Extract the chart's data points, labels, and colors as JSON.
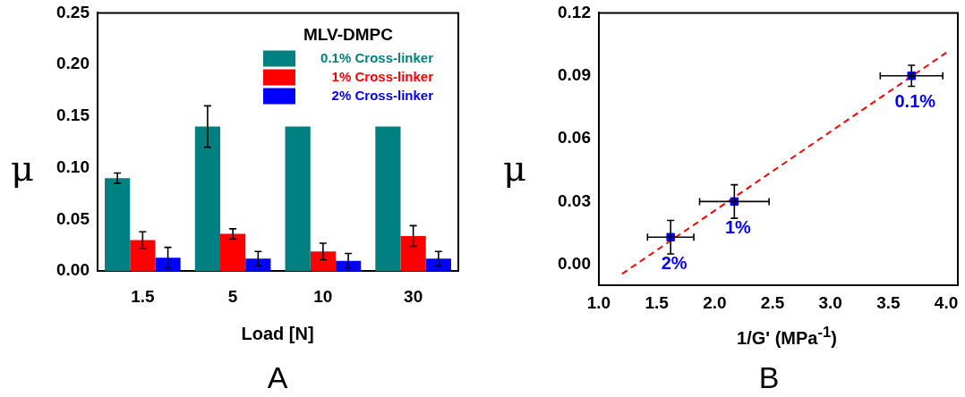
{
  "chart_data": [
    {
      "type": "bar",
      "xlabel": "Load [N]",
      "ylabel": "μ",
      "categories": [
        "1.5",
        "5",
        "10",
        "30"
      ],
      "series": [
        {
          "name": "0.1% Cross-linker",
          "color": "#008080",
          "values": [
            0.09,
            0.14,
            0.14,
            0.14
          ],
          "errors": [
            0.005,
            0.02,
            null,
            null
          ]
        },
        {
          "name": "1% Cross-linker",
          "color": "#ff0000",
          "values": [
            0.03,
            0.036,
            0.019,
            0.034
          ],
          "errors": [
            0.008,
            0.005,
            0.008,
            0.01
          ]
        },
        {
          "name": "2% Cross-linker",
          "color": "#0000ff",
          "values": [
            0.013,
            0.012,
            0.01,
            0.012
          ],
          "errors": [
            0.01,
            0.007,
            0.007,
            0.007
          ]
        }
      ],
      "ylim": [
        0,
        0.25
      ],
      "yticks": [
        {
          "value": 0,
          "label": "0.00"
        },
        {
          "value": 0.05,
          "label": "0.05"
        },
        {
          "value": 0.1,
          "label": "0.10"
        },
        {
          "value": 0.15,
          "label": "0.15"
        },
        {
          "value": 0.2,
          "label": "0.20"
        },
        {
          "value": 0.25,
          "label": "0.25"
        }
      ],
      "legend": "top right",
      "legend_title": "MLV-DMPC",
      "grid": false,
      "annotations": [
        "A"
      ]
    },
    {
      "type": "scatter",
      "xlabel": "1/G' (MPa$^{-1}$)",
      "ylabel": "μ",
      "series": [
        {
          "type": "scatter",
          "color": "#0000ff",
          "marker": "square",
          "x": [
            1.62,
            2.17,
            3.7
          ],
          "values": [
            0.013,
            0.03,
            0.09
          ],
          "errors": [
            0.008,
            0.008,
            0.005
          ],
          "xerrors": [
            0.2,
            0.3,
            0.27
          ]
        },
        {
          "type": "line",
          "color": "#ff0000",
          "line_style": "dashed",
          "marker": "none",
          "x": [
            1.2,
            4.0
          ],
          "values": [
            -0.0045,
            0.101
          ]
        }
      ],
      "xlim": [
        1.0,
        4.1
      ],
      "xticks": [
        {
          "value": 1,
          "label": "1.0"
        },
        {
          "value": 1.5,
          "label": "1.5"
        },
        {
          "value": 2,
          "label": "2.0"
        },
        {
          "value": 2.5,
          "label": "2.5"
        },
        {
          "value": 3,
          "label": "3.0"
        },
        {
          "value": 3.5,
          "label": "3.5"
        },
        {
          "value": 4,
          "label": "4.0"
        }
      ],
      "ylim": [
        -0.01,
        0.12
      ],
      "yticks": [
        {
          "value": 0,
          "label": "0.00"
        },
        {
          "value": 0.03,
          "label": "0.03"
        },
        {
          "value": 0.06,
          "label": "0.06"
        },
        {
          "value": 0.09,
          "label": "0.09"
        },
        {
          "value": 0.12,
          "label": "0.12"
        }
      ],
      "grid": false,
      "annotations": [
        {
          "text": "2%",
          "x": 1.62,
          "y": 0.013
        },
        {
          "text": "1%",
          "x": 2.17,
          "y": 0.03
        },
        {
          "text": "0.1%",
          "x": 3.7,
          "y": 0.09
        },
        "B"
      ]
    }
  ]
}
